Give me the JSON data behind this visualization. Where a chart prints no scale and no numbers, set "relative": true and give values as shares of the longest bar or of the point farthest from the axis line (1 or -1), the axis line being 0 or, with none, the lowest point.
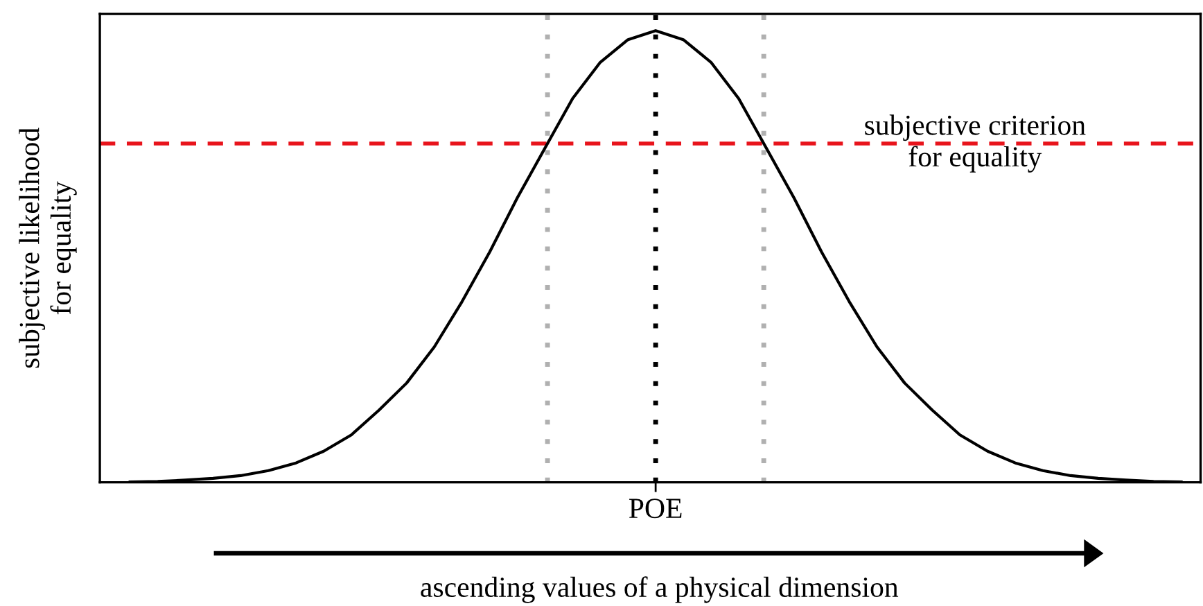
{
  "chart_data": {
    "type": "line",
    "relative": true,
    "ylabel": "subjective likelihood\nfor equality",
    "xlabel": "ascending values of a physical dimension",
    "categories": [
      null,
      null,
      null,
      null,
      null,
      null,
      null,
      null,
      null,
      null,
      null,
      null,
      null,
      null,
      null,
      null,
      null,
      null,
      null,
      null,
      null,
      null,
      null,
      null,
      null,
      null,
      null,
      null,
      null,
      null,
      null,
      null,
      null,
      null,
      null,
      null,
      null,
      null,
      null
    ],
    "annotations": [
      "POE"
    ],
    "series": [
      {
        "color": "#000000",
        "values": [
          0.001,
          0.002,
          0.005,
          0.009,
          0.015,
          0.026,
          0.043,
          0.069,
          0.105,
          0.16,
          0.22,
          0.3,
          0.4,
          0.51,
          0.63,
          0.74,
          0.85,
          0.93,
          0.98,
          1,
          0.98,
          0.93,
          0.85,
          0.74,
          0.63,
          0.51,
          0.4,
          0.3,
          0.22,
          0.16,
          0.105,
          0.069,
          0.043,
          0.026,
          0.015,
          0.009,
          0.005,
          0.002,
          0.001
        ]
      }
    ],
    "ref_lines": [
      {
        "axis": "y",
        "value": 0.75,
        "label": "subjective criterion\nfor equality",
        "color": "#e8141c",
        "line_style": "dashed"
      }
    ],
    "legend": false,
    "marker": "none",
    "line_style": "solid"
  }
}
